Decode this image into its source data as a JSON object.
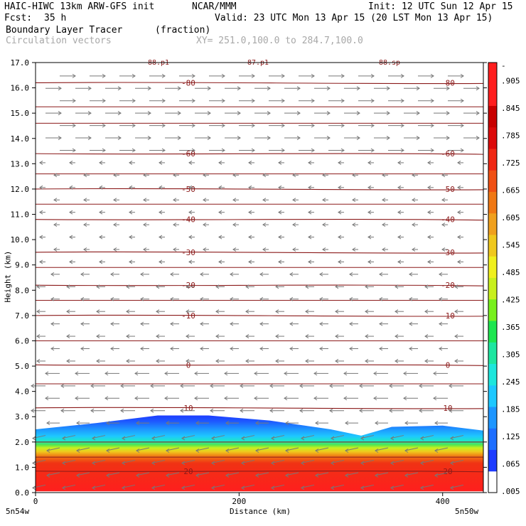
{
  "header": {
    "model": "HAIC-HIWC 13km ARW-GFS init",
    "org": "NCAR/MMM",
    "init": "Init: 12 UTC Sun 12 Apr 15",
    "fcst_label": "Fcst:",
    "fcst_value": "35 h",
    "valid": "Valid: 23 UTC Mon 13 Apr 15 (20 LST Mon 13 Apr 15)",
    "field": "Boundary Layer Tracer",
    "field_units": "(fraction)",
    "vectors": "Circulation vectors",
    "xy": "XY= 251.0,100.0 to 284.7,100.0"
  },
  "chart_data": {
    "type": "heatmap",
    "xlabel": "Distance (km)",
    "ylabel": "Height (km)",
    "xlim": [
      0,
      440
    ],
    "ylim": [
      0,
      17
    ],
    "x_ticks": [
      "0",
      "200",
      "400"
    ],
    "x_end_labels": [
      "5n54w",
      "5n50w"
    ],
    "y_ticks": [
      "0.0",
      "1.0",
      "2.0",
      "3.0",
      "4.0",
      "5.0",
      "6.0",
      "7.0",
      "8.0",
      "9.0",
      "10.0",
      "11.0",
      "12.0",
      "13.0",
      "14.0",
      "15.0",
      "16.0",
      "17.0"
    ],
    "colorbar": {
      "labels": [
        ".005",
        ".065",
        ".125",
        ".185",
        ".245",
        ".305",
        ".365",
        ".425",
        ".485",
        ".545",
        ".605",
        ".665",
        ".725",
        ".785",
        ".845",
        ".905",
        "-"
      ],
      "colors": [
        "#ffffff",
        "#1e3cff",
        "#1e6eff",
        "#1e96ff",
        "#1ec8ff",
        "#1ee6dc",
        "#1ee6a0",
        "#1ee650",
        "#78f01e",
        "#c8f01e",
        "#f0f01e",
        "#f0c81e",
        "#f0a01e",
        "#f07814",
        "#f05014",
        "#f02814",
        "#dc0a0a",
        "#c80000",
        "#ff1e1e",
        "#ff1e1e"
      ]
    },
    "boundary_layer_top": [
      {
        "x": 0,
        "h": 2.5
      },
      {
        "x": 60,
        "h": 2.75
      },
      {
        "x": 120,
        "h": 3.05
      },
      {
        "x": 170,
        "h": 3.05
      },
      {
        "x": 230,
        "h": 2.85
      },
      {
        "x": 290,
        "h": 2.5
      },
      {
        "x": 320,
        "h": 2.25
      },
      {
        "x": 350,
        "h": 2.6
      },
      {
        "x": 400,
        "h": 2.65
      },
      {
        "x": 440,
        "h": 2.45
      }
    ],
    "isotherms": [
      {
        "label": "-80",
        "h": 16.2
      },
      {
        "label": "-60",
        "h": 13.4
      },
      {
        "label": "-50",
        "h": 12.0
      },
      {
        "label": "-40",
        "h": 10.8
      },
      {
        "label": "-30",
        "h": 9.5
      },
      {
        "label": "-20",
        "h": 8.2
      },
      {
        "label": "-10",
        "h": 7.0
      },
      {
        "label": "0",
        "h": 5.05
      },
      {
        "label": "10",
        "h": 3.35
      },
      {
        "label": "20",
        "h": 0.85
      }
    ],
    "upper_labels": [
      "-88.p1",
      "-87.p1",
      "-88.sp"
    ],
    "grid": false
  }
}
